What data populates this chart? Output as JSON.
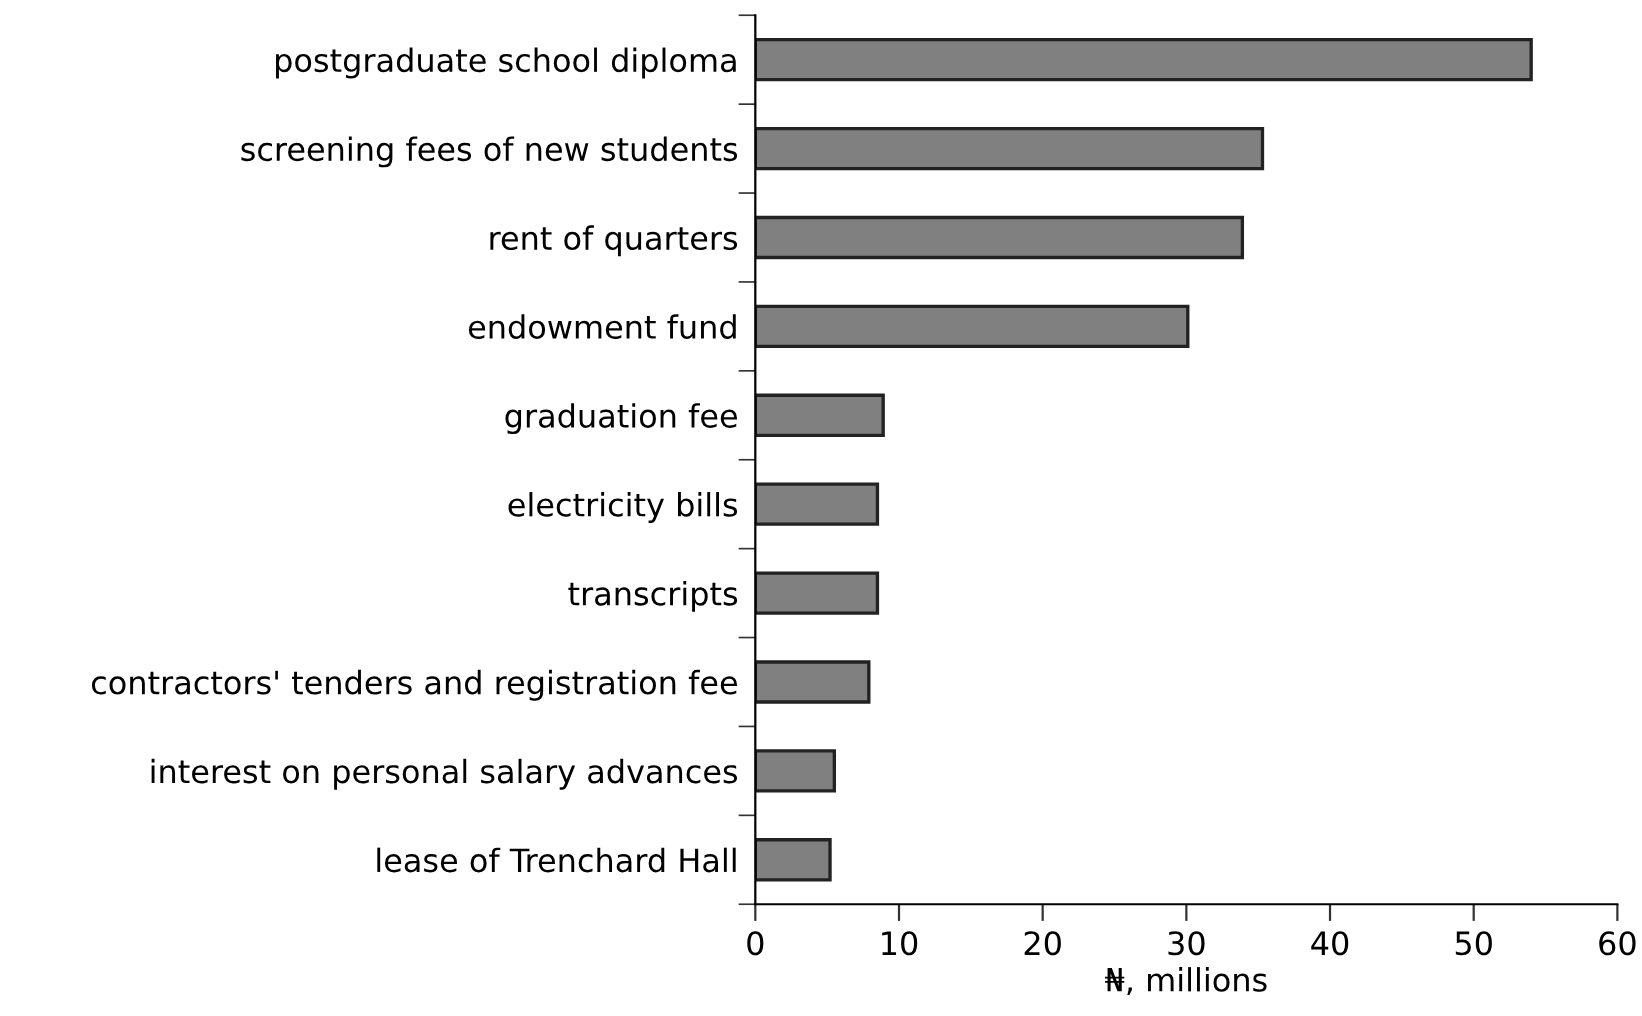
{
  "chart_data": {
    "type": "bar",
    "orientation": "horizontal",
    "xlabel": "₦, millions",
    "categories": [
      "postgraduate school diploma",
      "screening fees of new students",
      "rent of quarters",
      "endowment fund",
      "graduation fee",
      "electricity bills",
      "transcripts",
      "contractors' tenders and registration fee",
      "interest on personal salary advances",
      "lease of Trenchard Hall"
    ],
    "values": [
      54,
      35.3,
      33.9,
      30.1,
      8.9,
      8.5,
      8.5,
      7.9,
      5.5,
      5.2
    ],
    "color": "#808080",
    "xlim": [
      0,
      60
    ],
    "xticks": [
      0,
      10,
      20,
      30,
      40,
      50,
      60
    ],
    "grid": false,
    "legend": false
  }
}
